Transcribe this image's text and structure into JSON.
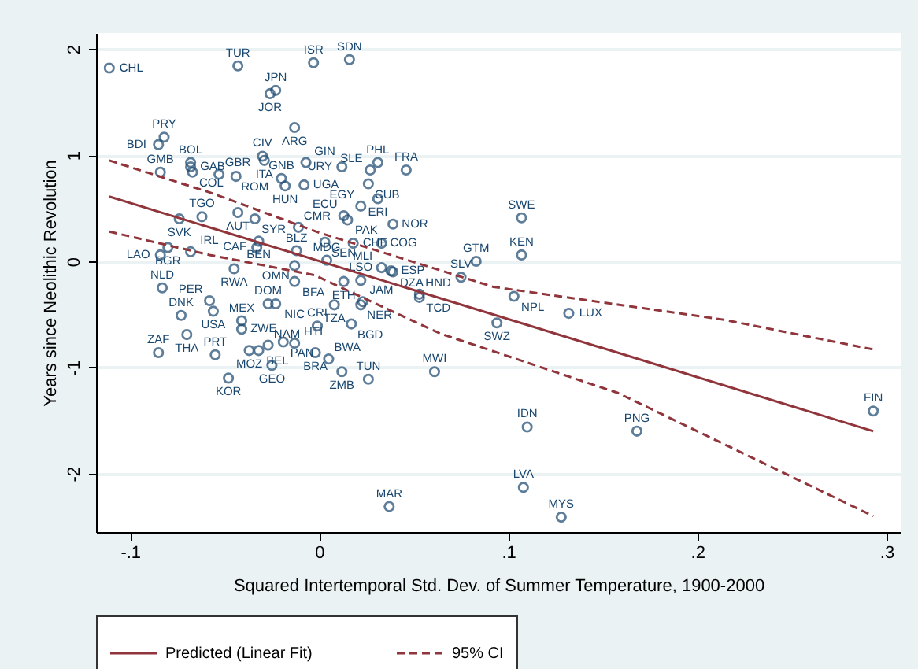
{
  "chart_data": {
    "type": "scatter",
    "xlabel": "Squared Intertemporal Std. Dev. of Summer Temperature, 1900-2000",
    "ylabel": "Years since Neolithic Revolution",
    "xlim": [
      -0.118,
      0.3075
    ],
    "ylim": [
      -2.55,
      2.15
    ],
    "xticks": [
      {
        "value": -0.1,
        "label": "-.1"
      },
      {
        "value": 0,
        "label": "0"
      },
      {
        "value": 0.1,
        "label": ".1"
      },
      {
        "value": 0.2,
        "label": ".2"
      },
      {
        "value": 0.3,
        "label": ".3"
      }
    ],
    "yticks": [
      -2,
      -1,
      0,
      1,
      2
    ],
    "grid": "y",
    "legend": "bottom",
    "marker": "circle",
    "series": [
      {
        "type": "scatter",
        "color": "#1a476f",
        "x": [
          -0.111,
          -0.043,
          -0.026,
          -0.023,
          -0.013,
          -0.082,
          -0.085,
          -0.084,
          -0.068,
          -0.068,
          -0.067,
          -0.053,
          -0.044,
          -0.03,
          -0.029,
          -0.02,
          -0.018,
          -0.008,
          -0.007,
          -0.074,
          -0.062,
          -0.043,
          -0.034,
          -0.011,
          -0.032,
          -0.033,
          -0.08,
          -0.084,
          -0.068,
          -0.045,
          -0.012,
          -0.013,
          -0.013,
          -0.083,
          -0.058,
          -0.056,
          -0.073,
          -0.07,
          -0.085,
          -0.055,
          -0.048,
          -0.041,
          -0.041,
          -0.027,
          -0.023,
          -0.037,
          -0.032,
          -0.027,
          -0.019,
          -0.013,
          -0.025,
          -0.001,
          -0.002,
          0.005,
          0.012,
          0.026,
          0.061,
          0.037,
          0.11,
          0.108,
          0.128,
          0.008,
          0.022,
          0.023,
          0.017,
          0.013,
          0.022,
          0.033,
          0.038,
          0.039,
          0.053,
          0.053,
          0.094,
          0.103,
          0.132,
          0.075,
          0.168,
          0.293,
          -0.003,
          0.016,
          0.012,
          0.031,
          0.027,
          0.026,
          0.031,
          0.046,
          0.022,
          0.013,
          0.015,
          0.039,
          0.003,
          0.018,
          0.033,
          0.004,
          0.107,
          0.107,
          0.083
        ],
        "values": [
          1.82,
          1.84,
          1.58,
          1.61,
          1.26,
          1.17,
          1.1,
          0.84,
          0.93,
          0.89,
          0.84,
          0.82,
          0.8,
          0.99,
          0.95,
          0.78,
          0.71,
          0.72,
          0.93,
          0.4,
          0.42,
          0.46,
          0.4,
          0.32,
          0.19,
          0.13,
          0.13,
          0.06,
          0.09,
          -0.07,
          0.1,
          -0.04,
          -0.19,
          -0.25,
          -0.37,
          -0.47,
          -0.51,
          -0.69,
          -0.86,
          -0.88,
          -1.1,
          -0.56,
          -0.64,
          -0.4,
          -0.4,
          -0.84,
          -0.84,
          -0.79,
          -0.76,
          -0.77,
          -0.98,
          -0.61,
          -0.86,
          -0.92,
          -1.04,
          -1.11,
          -1.04,
          -2.31,
          -1.56,
          -2.13,
          -2.41,
          -0.41,
          -0.41,
          -0.38,
          -0.59,
          -0.19,
          -0.18,
          -0.06,
          -0.09,
          -0.1,
          -0.31,
          -0.34,
          -0.58,
          -0.33,
          -0.49,
          -0.15,
          -1.6,
          -1.41,
          1.87,
          1.9,
          0.89,
          0.93,
          0.86,
          0.73,
          0.59,
          0.86,
          0.52,
          0.43,
          0.39,
          0.35,
          0.18,
          0.17,
          0.17,
          0.01,
          0.41,
          0.06,
          0.0
        ],
        "value_labels": [
          "CHL",
          "TUR",
          "JOR",
          "JPN",
          "ARG",
          "PRY",
          "BDI",
          "GMB",
          "BOL",
          "GAB",
          "COL",
          "GBR",
          "ROM",
          "CIV",
          "ITA",
          "GNB",
          "HUN",
          "UGA",
          "GIN",
          "SVK",
          "TGO",
          "AUT",
          "SYR",
          "CMR",
          "BEN",
          "CAF",
          "BGR",
          "LAO",
          "IRL",
          "RWA",
          "BLZ",
          "OMN",
          "BFA",
          "NLD",
          "PER",
          "USA",
          "DNK",
          "THA",
          "ZAF",
          "PRT",
          "KOR",
          "MEX",
          "ZWE",
          "DOM",
          "NIC",
          "MOZ",
          "BEL",
          "NAM",
          "PAN",
          "HTI",
          "GEO",
          "CRI",
          "BRA",
          "BWA",
          "ZMB",
          "TUN",
          "MWI",
          "MAR",
          "IDN",
          "LVA",
          "MYS",
          "TZA",
          "NER",
          "JAM",
          "BGD",
          "ETH",
          "LSO",
          "MLI",
          "ESP",
          "DZA",
          "HND",
          "TCD",
          "SWZ",
          "NPL",
          "LUX",
          "SLV",
          "PNG",
          "FIN",
          "ISR",
          "SDN",
          "URY",
          "PHL",
          "SLE",
          "CUB",
          "ERI",
          "FRA",
          "EGY",
          "ECU",
          "PAK",
          "NOR",
          "SEN",
          "CHE",
          "COG",
          "MDG",
          "SWE",
          "KEN",
          "GTM"
        ]
      },
      {
        "type": "line",
        "name": "Predicted (Linear Fit)",
        "color": "#90353b",
        "line_style": "solid",
        "marker": "none",
        "x": [
          -0.111,
          0.293
        ],
        "values": [
          0.61,
          -1.6
        ]
      },
      {
        "type": "line",
        "name": "95% CI",
        "color": "#90353b",
        "line_style": "dashed",
        "marker": "none",
        "x": [
          -0.111,
          -0.058,
          0.0,
          0.092,
          0.214,
          0.293
        ],
        "values": [
          0.95,
          0.65,
          0.27,
          -0.24,
          -0.55,
          -0.83
        ]
      },
      {
        "type": "line",
        "color": "#90353b",
        "line_style": "dashed",
        "marker": "none",
        "x": [
          -0.111,
          -0.058,
          -0.0025,
          0.064,
          0.158,
          0.293
        ],
        "values": [
          0.28,
          0.06,
          -0.13,
          -0.68,
          -1.24,
          -2.4
        ]
      }
    ]
  }
}
